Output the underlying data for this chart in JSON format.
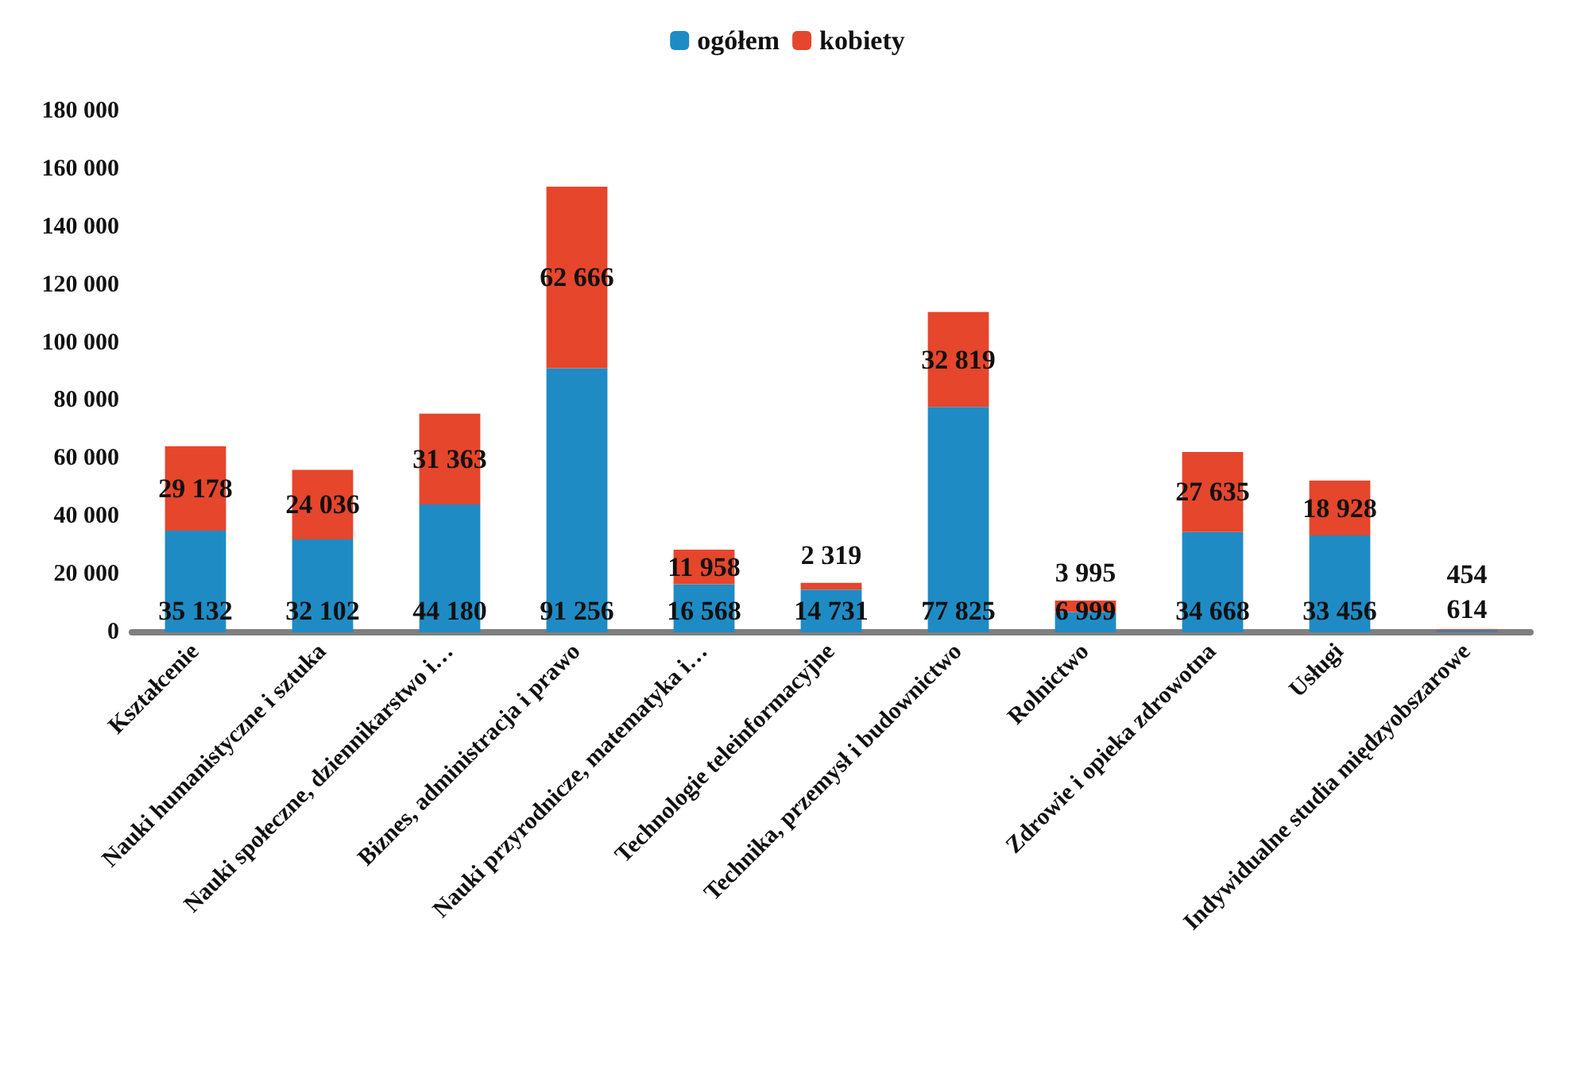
{
  "chart_data": {
    "type": "bar",
    "stacked": true,
    "legend": "top",
    "grid": false,
    "categories": [
      "Kształcenie",
      "Nauki humanistyczne i sztuka",
      "Nauki społeczne, dziennikarstwo i…",
      "Biznes, administracja i prawo",
      "Nauki przyrodnicze, matematyka i…",
      "Technologie teleinformacyjne",
      "Technika, przemysł i budownictwo",
      "Rolnictwo",
      "Zdrowie i opieka zdrowotna",
      "Usługi",
      "Indywidualne studia międzyobszarowe"
    ],
    "series": [
      {
        "name": "ogółem",
        "color": "#1f8bc4",
        "values": [
          35132,
          32102,
          44180,
          91256,
          16568,
          14731,
          77825,
          6999,
          34668,
          33456,
          614
        ],
        "value_labels": [
          "35 132",
          "32 102",
          "44 180",
          "91 256",
          "16 568",
          "14 731",
          "77 825",
          "6 999",
          "34 668",
          "33 456",
          "614"
        ]
      },
      {
        "name": "kobiety",
        "color": "#e5462c",
        "values": [
          29178,
          24036,
          31363,
          62666,
          11958,
          2319,
          32819,
          3995,
          27635,
          18928,
          454
        ],
        "value_labels": [
          "29 178",
          "24 036",
          "31 363",
          "62 666",
          "11 958",
          "2 319",
          "32 819",
          "3 995",
          "27 635",
          "18 928",
          "454"
        ]
      }
    ],
    "ylim": [
      0,
      180000
    ],
    "yticks": [
      {
        "value": 0,
        "label": "0"
      },
      {
        "value": 20000,
        "label": "20 000"
      },
      {
        "value": 40000,
        "label": "40 000"
      },
      {
        "value": 60000,
        "label": "60 000"
      },
      {
        "value": 80000,
        "label": "80 000"
      },
      {
        "value": 100000,
        "label": "100 000"
      },
      {
        "value": 120000,
        "label": "120 000"
      },
      {
        "value": 140000,
        "label": "140 000"
      },
      {
        "value": 160000,
        "label": "160 000"
      },
      {
        "value": 180000,
        "label": "180 000"
      }
    ]
  }
}
